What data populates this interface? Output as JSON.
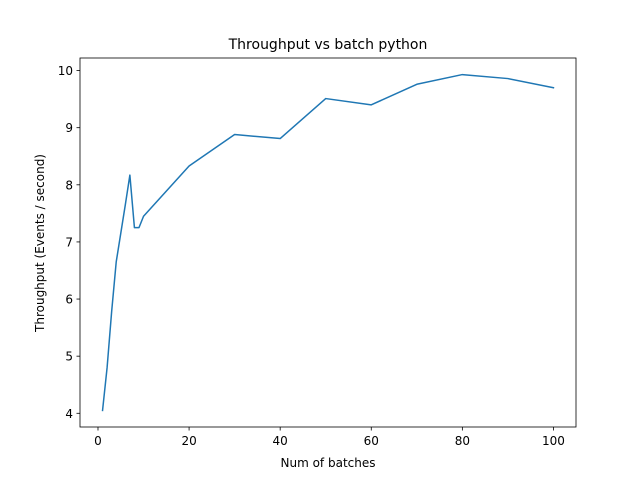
{
  "chart_data": {
    "type": "line",
    "title": "Throughput vs batch python",
    "xlabel": "Num of batches",
    "ylabel": "Throughput (Events / second)",
    "xlim": [
      -3.95,
      104.95
    ],
    "ylim": [
      3.76,
      10.22
    ],
    "xticks": [
      0,
      20,
      40,
      60,
      80,
      100
    ],
    "yticks": [
      4,
      5,
      6,
      7,
      8,
      9,
      10
    ],
    "grid": false,
    "series": [
      {
        "color": "#1f77b4",
        "x": [
          1,
          2,
          3,
          4,
          5,
          6,
          7,
          8,
          9,
          10,
          20,
          30,
          40,
          50,
          60,
          70,
          80,
          90,
          100
        ],
        "y": [
          4.05,
          4.8,
          5.78,
          6.65,
          7.15,
          7.65,
          8.17,
          7.25,
          7.25,
          7.45,
          8.33,
          8.88,
          8.81,
          9.51,
          9.4,
          9.76,
          9.93,
          9.86,
          9.7
        ]
      }
    ]
  }
}
